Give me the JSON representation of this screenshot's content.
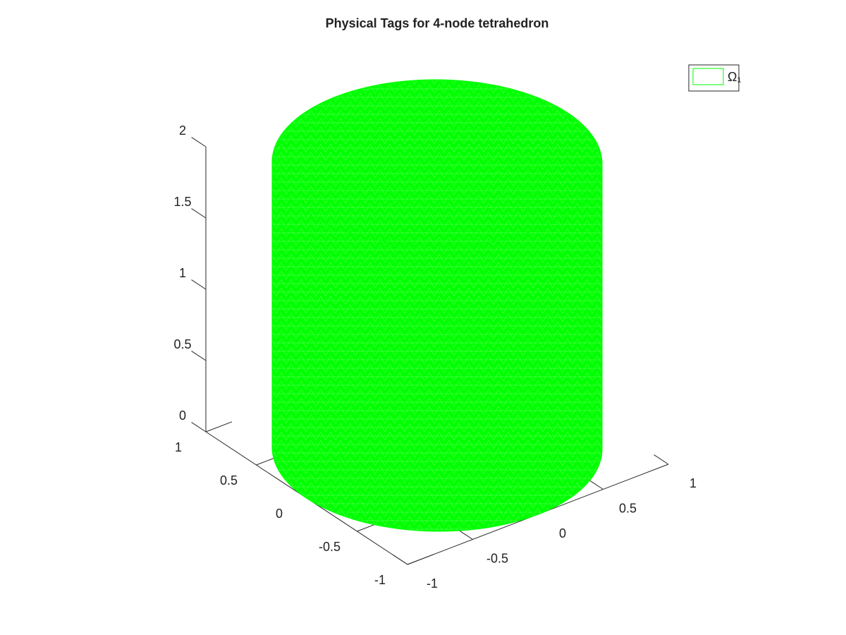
{
  "chart_data": {
    "type": "mesh3d",
    "title": "Physical Tags for 4-node tetrahedron",
    "series": [
      {
        "name": "Ω₁",
        "color": "#00ff00",
        "radius": 1,
        "zrange": [
          0,
          2
        ]
      }
    ],
    "xlim": [
      -1,
      1
    ],
    "xticks": [
      -1,
      -0.5,
      0,
      0.5,
      1
    ],
    "ylim": [
      -1,
      1
    ],
    "yticks": [
      -1,
      -0.5,
      0,
      0.5,
      1
    ],
    "zlim": [
      0,
      2
    ],
    "zticks": [
      0,
      0.5,
      1,
      1.5,
      2
    ],
    "grid": false,
    "legend": "northeast"
  }
}
